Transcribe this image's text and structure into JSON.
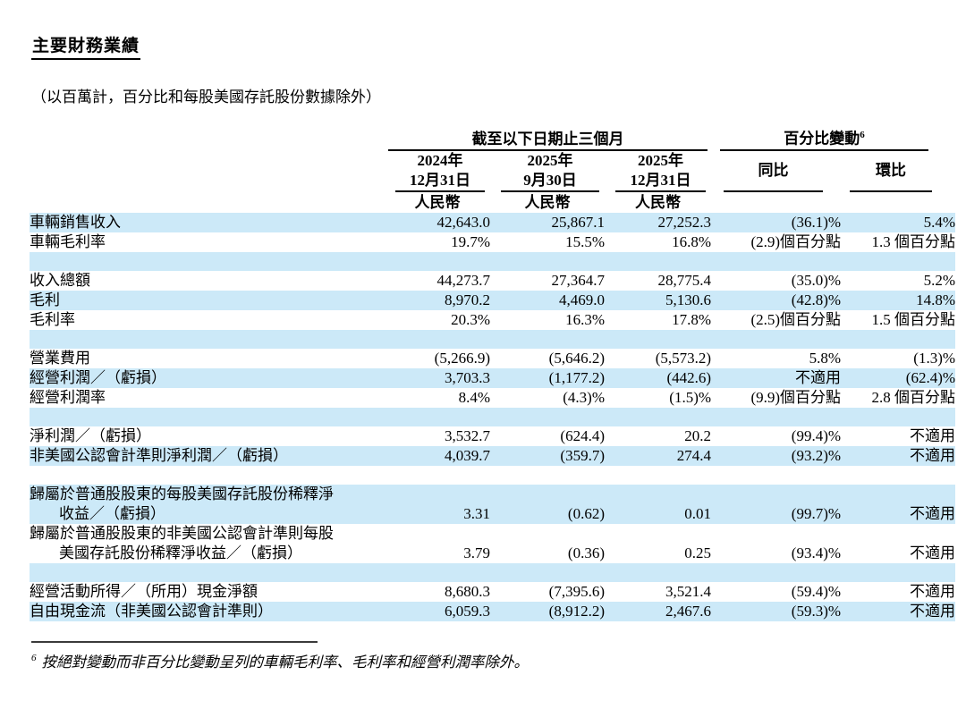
{
  "title": "主要財務業績",
  "subtitle": "（以百萬計，百分比和每股美國存託股份數據除外）",
  "colors": {
    "row_shade": "#cce9f8",
    "text": "#000000",
    "rule": "#3a3a3a"
  },
  "table": {
    "period_header": "截至以下日期止三個月",
    "change_header": "百分比變動",
    "change_footnote_ref": "6",
    "columns": [
      {
        "date_line1": "2024年",
        "date_line2": "12月31日",
        "currency": "人民幣"
      },
      {
        "date_line1": "2025年",
        "date_line2": "9月30日",
        "currency": "人民幣"
      },
      {
        "date_line1": "2025年",
        "date_line2": "12月31日",
        "currency": "人民幣"
      },
      {
        "label": "同比"
      },
      {
        "label": "環比"
      }
    ],
    "rows": [
      {
        "shade": true,
        "label": [
          "車輛銷售收入"
        ],
        "values": [
          "42,643.0",
          "25,867.1",
          "27,252.3",
          "(36.1)%",
          "5.4%"
        ]
      },
      {
        "shade": false,
        "label": [
          "車輛毛利率"
        ],
        "values": [
          "19.7%",
          "15.5%",
          "16.8%",
          "(2.9)個百分點",
          "1.3 個百分點"
        ]
      },
      {
        "shade": true,
        "spacer": true
      },
      {
        "shade": false,
        "label": [
          "收入總額"
        ],
        "values": [
          "44,273.7",
          "27,364.7",
          "28,775.4",
          "(35.0)%",
          "5.2%"
        ]
      },
      {
        "shade": true,
        "label": [
          "毛利"
        ],
        "values": [
          "8,970.2",
          "4,469.0",
          "5,130.6",
          "(42.8)%",
          "14.8%"
        ]
      },
      {
        "shade": false,
        "label": [
          "毛利率"
        ],
        "values": [
          "20.3%",
          "16.3%",
          "17.8%",
          "(2.5)個百分點",
          "1.5 個百分點"
        ]
      },
      {
        "shade": true,
        "spacer": true
      },
      {
        "shade": false,
        "label": [
          "營業費用"
        ],
        "values": [
          "(5,266.9)",
          "(5,646.2)",
          "(5,573.2)",
          "5.8%",
          "(1.3)%"
        ]
      },
      {
        "shade": true,
        "label": [
          "經營利潤／（虧損）"
        ],
        "values": [
          "3,703.3",
          "(1,177.2)",
          "(442.6)",
          "不適用",
          "(62.4)%"
        ]
      },
      {
        "shade": false,
        "label": [
          "經營利潤率"
        ],
        "values": [
          "8.4%",
          "(4.3)%",
          "(1.5)%",
          "(9.9)個百分點",
          "2.8 個百分點"
        ]
      },
      {
        "shade": true,
        "spacer": true
      },
      {
        "shade": false,
        "label": [
          "淨利潤／（虧損）"
        ],
        "values": [
          "3,532.7",
          "(624.4)",
          "20.2",
          "(99.4)%",
          "不適用"
        ]
      },
      {
        "shade": true,
        "label": [
          "非美國公認會計準則淨利潤／（虧損）"
        ],
        "values": [
          "4,039.7",
          "(359.7)",
          "274.4",
          "(93.2)%",
          "不適用"
        ]
      },
      {
        "shade": false,
        "spacer": true
      },
      {
        "shade": true,
        "label": [
          "歸屬於普通股股東的每股美國存託股份稀釋淨",
          "收益／（虧損）"
        ],
        "values": [
          "3.31",
          "(0.62)",
          "0.01",
          "(99.7)%",
          "不適用"
        ]
      },
      {
        "shade": false,
        "label": [
          "歸屬於普通股股東的非美國公認會計準則每股",
          "美國存託股份稀釋淨收益／（虧損）"
        ],
        "values": [
          "3.79",
          "(0.36)",
          "0.25",
          "(93.4)%",
          "不適用"
        ]
      },
      {
        "shade": true,
        "spacer": true
      },
      {
        "shade": false,
        "label": [
          "經營活動所得／（所用）現金淨額"
        ],
        "values": [
          "8,680.3",
          "(7,395.6)",
          "3,521.4",
          "(59.4)%",
          "不適用"
        ]
      },
      {
        "shade": true,
        "label": [
          "自由現金流（非美國公認會計準則）"
        ],
        "values": [
          "6,059.3",
          "(8,912.2)",
          "2,467.6",
          "(59.3)%",
          "不適用"
        ]
      }
    ]
  },
  "footnote": {
    "ref": "6",
    "text": "按絕對變動而非百分比變動呈列的車輛毛利率、毛利率和經營利潤率除外。"
  }
}
